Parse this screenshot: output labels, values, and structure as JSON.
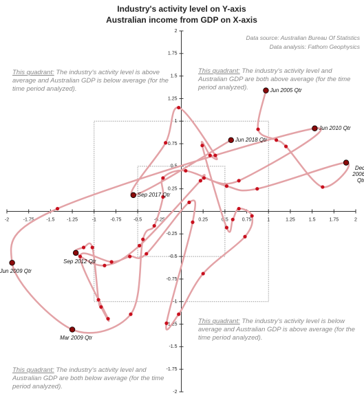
{
  "chart_data": {
    "type": "connected-scatter",
    "title": [
      "Industry's activity level on Y-axis",
      "Australian income from GDP on X-axis"
    ],
    "source": [
      "Data source: Australian Bureau Of Statistics",
      "Data analysis: Fathom Geophysics"
    ],
    "quadrant_notes": [
      {
        "label": "This quadrant:",
        "text": "The industry's activity level is above average and Australian GDP is below average (for the time period analyzed)."
      },
      {
        "label": "This quadrant:",
        "text": "The industry's activity level and Australian GDP are both above average (for the time period analyzed)."
      },
      {
        "label": "This quadrant:",
        "text": "The industry's activity level is below average and Australian GDP is above average (for the time period analyzed)."
      },
      {
        "label": "This quadrant:",
        "text": "The industry's activity level and Australian GDP are both below average (for the time period analyzed)."
      }
    ],
    "x": [
      0.97,
      0.88,
      1.09,
      1.2,
      1.62,
      1.89,
      0.87,
      0.52,
      0.05,
      -0.21,
      -0.21,
      -0.31,
      -0.44,
      -0.58,
      -1.25,
      -1.94,
      -1.42,
      1.53,
      0.66,
      0.26,
      0.22,
      -0.48,
      -0.88,
      -1.21,
      -1.12,
      -1.02,
      -0.95,
      -0.92,
      -0.84,
      -1.16,
      -0.8,
      -0.59,
      -0.4,
      0.09,
      0.13,
      -0.17,
      -0.03,
      0.25,
      0.73,
      0.81,
      0.66,
      0.59,
      0.52,
      0.24,
      0.33,
      0.39,
      -0.03,
      -0.18,
      -0.55,
      0.57
    ],
    "y": [
      1.34,
      0.91,
      0.79,
      0.72,
      0.27,
      0.54,
      0.25,
      0.28,
      0.45,
      0.37,
      0.16,
      -0.16,
      -0.31,
      -1.14,
      -1.31,
      -0.57,
      0.03,
      0.92,
      0.34,
      0.37,
      0.34,
      -0.38,
      -0.6,
      -0.46,
      -0.4,
      -0.4,
      -0.98,
      -1.06,
      -1.19,
      -0.5,
      -0.56,
      -0.5,
      -0.47,
      0.1,
      -0.12,
      -1.24,
      -1.14,
      -0.69,
      -0.28,
      -0.05,
      0.03,
      -0.09,
      -0.18,
      0.73,
      0.62,
      0.62,
      1.15,
      0.76,
      0.18,
      0.79
    ],
    "point_labels": [
      "Jun 2005 Qtr",
      null,
      null,
      null,
      null,
      "Dec 2006 Qtr",
      null,
      null,
      null,
      null,
      null,
      null,
      null,
      null,
      "Mar 2009 Qtr",
      "Jun 2009 Qtr",
      null,
      "Jun 2010 Qtr",
      null,
      null,
      null,
      null,
      null,
      "Sep 2012 Qtr",
      null,
      null,
      null,
      null,
      null,
      null,
      null,
      null,
      null,
      null,
      null,
      null,
      null,
      null,
      null,
      null,
      null,
      null,
      null,
      null,
      null,
      null,
      null,
      null,
      "Sep 2017 Qtr",
      "Jun 2018 Qtr"
    ],
    "xlim": [
      -2,
      2
    ],
    "ylim": [
      -2,
      2
    ],
    "xticks": [
      -2,
      -1.75,
      -1.5,
      -1.25,
      -1,
      -0.75,
      -0.5,
      -0.25,
      0.25,
      0.5,
      0.75,
      1,
      1.25,
      1.5,
      1.75,
      2
    ],
    "yticks": [
      -2,
      -1.75,
      -1.5,
      -1.25,
      -1,
      -0.75,
      -0.5,
      -0.25,
      0.25,
      0.5,
      0.75,
      1,
      1.25,
      1.5,
      1.75,
      2
    ],
    "boxes": [
      1,
      0.5
    ],
    "line_color": "#e3a2a6",
    "point_color": "#c8101e",
    "highlight_color": "#8b0a0a"
  }
}
